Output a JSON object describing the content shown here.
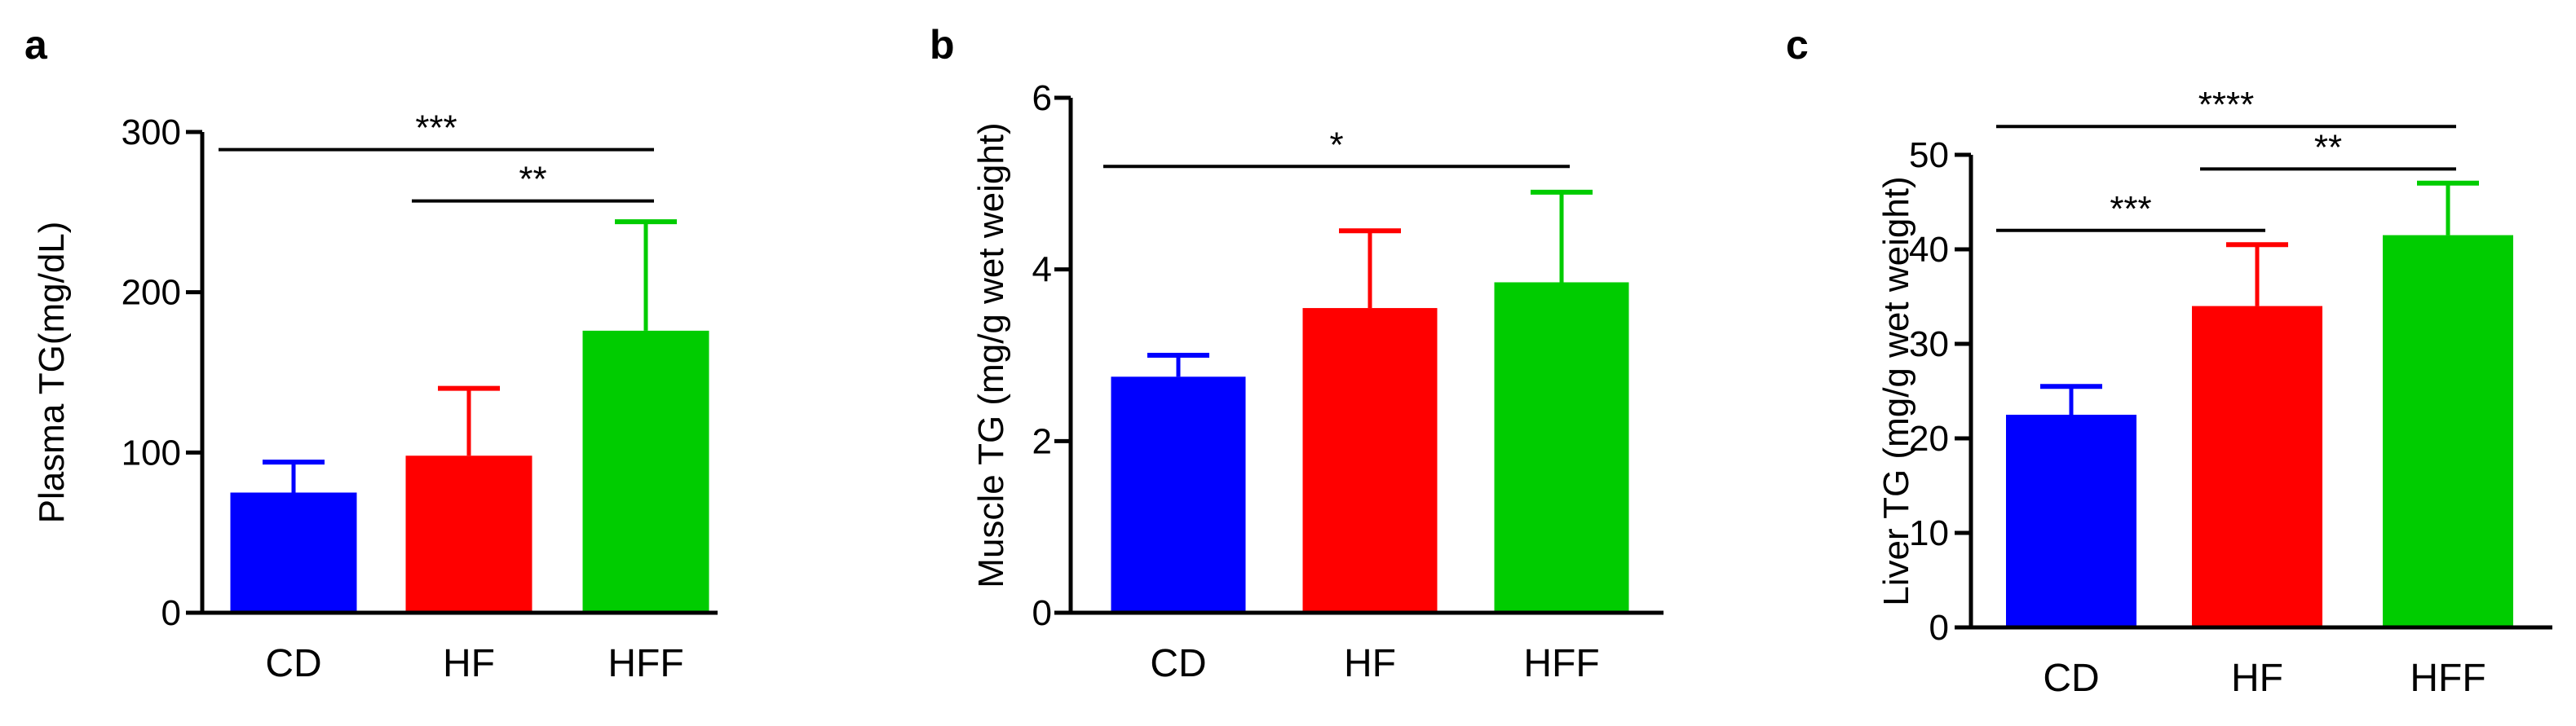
{
  "chart_data": [
    {
      "type": "bar",
      "panel": "a",
      "title": "",
      "xlabel": "",
      "ylabel": "Plasma TG(mg/dL)",
      "ylim": [
        0,
        300
      ],
      "yticks": [
        0,
        100,
        200,
        300
      ],
      "categories": [
        "CD",
        "HF",
        "HFF"
      ],
      "values": [
        75,
        98,
        176
      ],
      "errors": [
        19,
        42,
        68
      ],
      "colors": [
        "#0000ff",
        "#ff0000",
        "#00cc00"
      ],
      "significance": [
        {
          "from": 0,
          "to": 2,
          "label": "***",
          "y": 289
        },
        {
          "from": 1,
          "to": 2,
          "label": "**",
          "y": 257
        }
      ]
    },
    {
      "type": "bar",
      "panel": "b",
      "title": "",
      "xlabel": "",
      "ylabel": "Muscle TG (mg/g wet weight)",
      "ylim": [
        0,
        6
      ],
      "yticks": [
        0,
        2,
        4,
        6
      ],
      "categories": [
        "CD",
        "HF",
        "HFF"
      ],
      "values": [
        2.75,
        3.55,
        3.85
      ],
      "errors": [
        0.25,
        0.9,
        1.05
      ],
      "colors": [
        "#0000ff",
        "#ff0000",
        "#00cc00"
      ],
      "significance": [
        {
          "from": 0,
          "to": 2,
          "label": "*",
          "y": 5.2
        }
      ]
    },
    {
      "type": "bar",
      "panel": "c",
      "title": "",
      "xlabel": "",
      "ylabel": "Liver TG (mg/g wet weight)",
      "ylim": [
        0,
        50
      ],
      "yticks": [
        0,
        10,
        20,
        30,
        40,
        50
      ],
      "categories": [
        "CD",
        "HF",
        "HFF"
      ],
      "values": [
        22.5,
        34,
        41.5
      ],
      "errors": [
        3,
        6.5,
        5.5
      ],
      "colors": [
        "#0000ff",
        "#ff0000",
        "#00cc00"
      ],
      "significance": [
        {
          "from": 0,
          "to": 2,
          "label": "****",
          "y": 53
        },
        {
          "from": 1,
          "to": 2,
          "label": "**",
          "y": 48.5
        },
        {
          "from": 0,
          "to": 1,
          "label": "***",
          "y": 42
        }
      ]
    }
  ]
}
